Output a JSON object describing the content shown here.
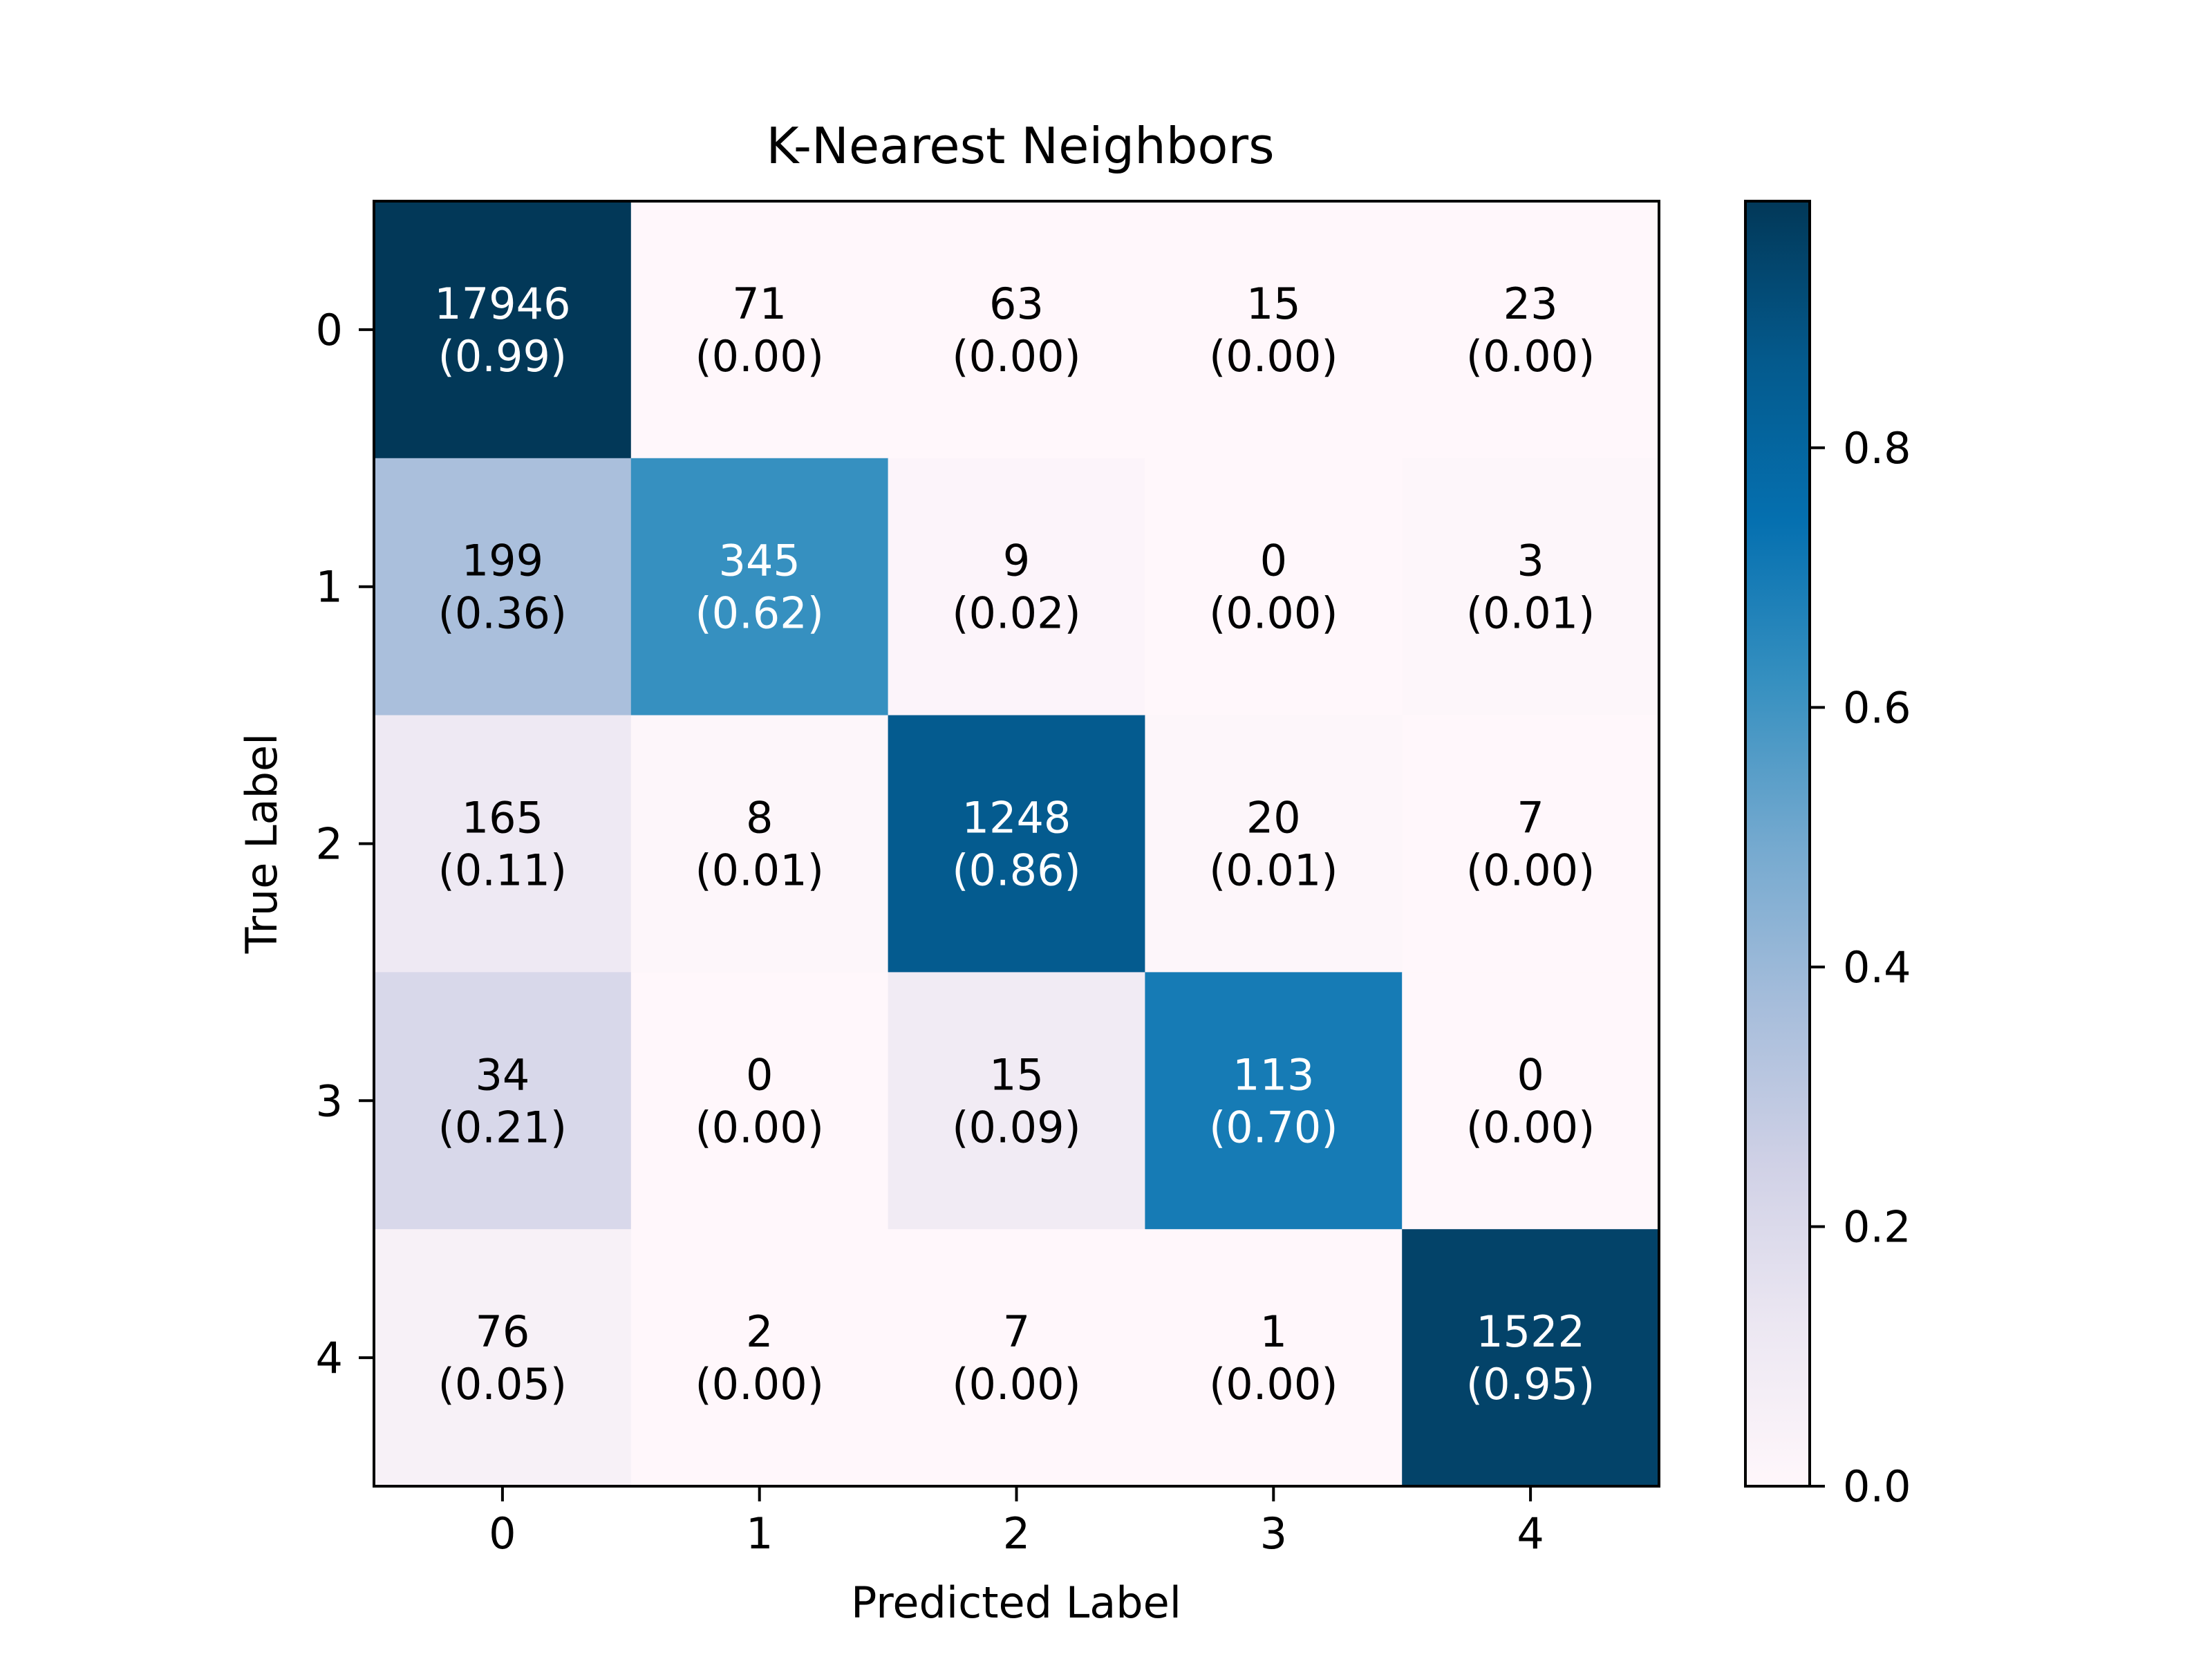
{
  "chart_data": {
    "type": "heatmap",
    "title": "K-Nearest Neighbors",
    "xlabel": "Predicted Label",
    "ylabel": "True Label",
    "x_categories": [
      "0",
      "1",
      "2",
      "3",
      "4"
    ],
    "y_categories": [
      "0",
      "1",
      "2",
      "3",
      "4"
    ],
    "counts": [
      [
        17946,
        71,
        63,
        15,
        23
      ],
      [
        199,
        345,
        9,
        0,
        3
      ],
      [
        165,
        8,
        1248,
        20,
        7
      ],
      [
        34,
        0,
        15,
        113,
        0
      ],
      [
        76,
        2,
        7,
        1,
        1522
      ]
    ],
    "normalized": [
      [
        0.99,
        0.0,
        0.0,
        0.0,
        0.0
      ],
      [
        0.36,
        0.62,
        0.02,
        0.0,
        0.01
      ],
      [
        0.11,
        0.01,
        0.86,
        0.01,
        0.0
      ],
      [
        0.21,
        0.0,
        0.09,
        0.7,
        0.0
      ],
      [
        0.05,
        0.0,
        0.0,
        0.0,
        0.95
      ]
    ],
    "normalized_labels": [
      [
        "(0.99)",
        "(0.00)",
        "(0.00)",
        "(0.00)",
        "(0.00)"
      ],
      [
        "(0.36)",
        "(0.62)",
        "(0.02)",
        "(0.00)",
        "(0.01)"
      ],
      [
        "(0.11)",
        "(0.01)",
        "(0.86)",
        "(0.01)",
        "(0.00)"
      ],
      [
        "(0.21)",
        "(0.00)",
        "(0.09)",
        "(0.70)",
        "(0.00)"
      ],
      [
        "(0.05)",
        "(0.00)",
        "(0.00)",
        "(0.00)",
        "(0.95)"
      ]
    ],
    "colormap": "PuBu",
    "colorbar": {
      "range": [
        0,
        0.99
      ],
      "ticks": [
        0.0,
        0.2,
        0.4,
        0.6,
        0.8
      ],
      "tick_labels": [
        "0.0",
        "0.2",
        "0.4",
        "0.6",
        "0.8"
      ]
    },
    "grid": false
  }
}
